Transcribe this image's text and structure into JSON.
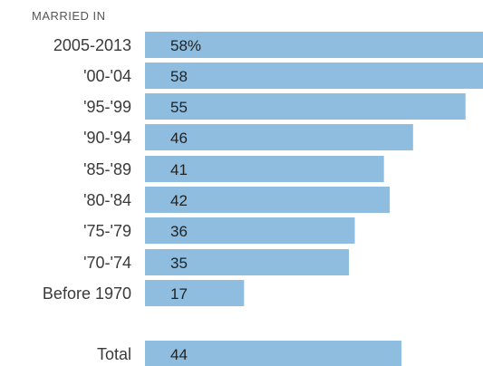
{
  "chart_data": {
    "type": "bar",
    "orientation": "horizontal",
    "header": "MARRIED IN",
    "categories": [
      "2005-2013",
      "'00-'04",
      "'95-'99",
      "'90-'94",
      "'85-'89",
      "'80-'84",
      "'75-'79",
      "'70-'74",
      "Before 1970",
      "Total"
    ],
    "values": [
      58,
      58,
      55,
      46,
      41,
      42,
      36,
      35,
      17,
      44
    ],
    "value_labels": [
      "58%",
      "58",
      "55",
      "46",
      "41",
      "42",
      "36",
      "35",
      "17",
      "44"
    ],
    "xlim": [
      0,
      58
    ],
    "grid": false,
    "bar_color": "#8ebddf"
  }
}
